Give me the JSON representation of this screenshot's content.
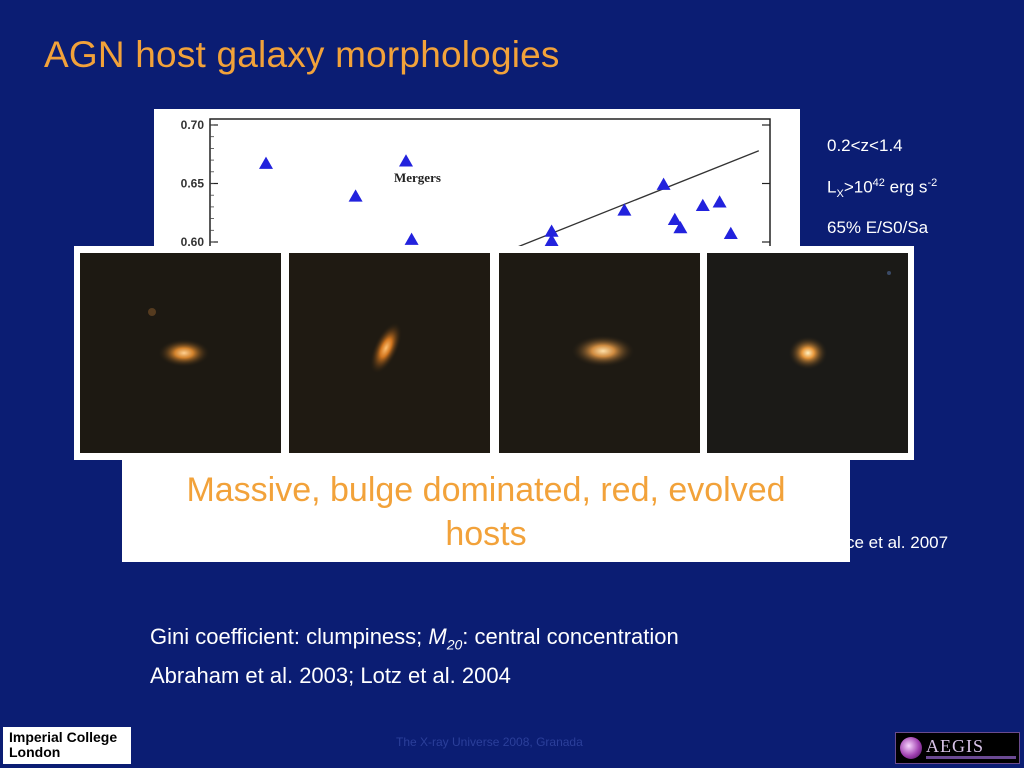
{
  "slide": {
    "title": "AGN host galaxy morphologies",
    "side_notes": {
      "redshift": "0.2<z<1.4",
      "lx_L": "L",
      "lx_sub": "X",
      "lx_mid": ">10",
      "lx_exp": "42",
      "lx_unit": " erg s",
      "lx_unit_exp": "-2",
      "morph": "65% E/S0/Sa"
    },
    "caption_line1": "Massive, bulge dominated, red, evolved",
    "caption_line2": "hosts",
    "ref_right": "ce et al. 2007",
    "line1_a": "Gini coefficient: clumpiness; ",
    "line1_m": "M",
    "line1_sub": "20",
    "line1_b": ": central concentration",
    "line2": "Abraham et al. 2003; Lotz et al. 2004",
    "footer": "The X-ray Universe 2008, Granada",
    "logo_left_line1": "Imperial College",
    "logo_left_line2": "London",
    "logo_right": "AEGIS"
  },
  "chart_data": {
    "type": "scatter",
    "yticks": [
      "0.70",
      "0.65",
      "0.60"
    ],
    "annotation": "Mergers",
    "marker_color": "#2222dd",
    "marker": "triangle",
    "points": [
      {
        "x": 1,
        "y": 0.667
      },
      {
        "x": 2.6,
        "y": 0.639
      },
      {
        "x": 3.5,
        "y": 0.669
      },
      {
        "x": 3.6,
        "y": 0.602
      },
      {
        "x": 6.1,
        "y": 0.609
      },
      {
        "x": 6.1,
        "y": 0.601
      },
      {
        "x": 7.4,
        "y": 0.627
      },
      {
        "x": 8.1,
        "y": 0.649
      },
      {
        "x": 8.3,
        "y": 0.619
      },
      {
        "x": 8.4,
        "y": 0.612
      },
      {
        "x": 8.8,
        "y": 0.631
      },
      {
        "x": 9.1,
        "y": 0.634
      },
      {
        "x": 9.3,
        "y": 0.607
      }
    ],
    "trend_line": {
      "x0": 5.4,
      "y0": 0.594,
      "x1": 9.8,
      "y1": 0.678
    }
  },
  "galaxies": [
    {
      "color": "#e39a4b"
    },
    {
      "color": "#e58a2e"
    },
    {
      "color": "#e6a15a"
    },
    {
      "color": "#f0a050"
    }
  ]
}
